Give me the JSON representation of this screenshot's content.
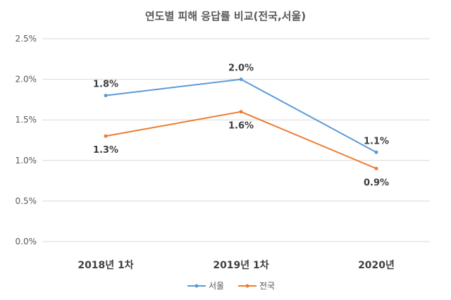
{
  "chart_data": {
    "type": "line",
    "title": "연도별 피해 응답률 비교(전국,서울)",
    "categories": [
      "2018년 1차",
      "2019년 1차",
      "2020년"
    ],
    "series": [
      {
        "name": "서울",
        "color": "#5B9BD5",
        "values": [
          1.8,
          2.0,
          1.1
        ],
        "labels": [
          "1.8%",
          "2.0%",
          "1.1%"
        ],
        "label_position": "above"
      },
      {
        "name": "전국",
        "color": "#ED7D31",
        "values": [
          1.3,
          1.6,
          0.9
        ],
        "labels": [
          "1.3%",
          "1.6%",
          "0.9%"
        ],
        "label_position": "below"
      }
    ],
    "ylim": [
      0,
      2.5
    ],
    "yticks": [
      0,
      0.5,
      1.0,
      1.5,
      2.0,
      2.5
    ],
    "ytick_labels": [
      "0.0%",
      "0.5%",
      "1.0%",
      "1.5%",
      "2.0%",
      "2.5%"
    ],
    "xlabel": "",
    "ylabel": "",
    "grid": true,
    "legend_position": "bottom"
  }
}
